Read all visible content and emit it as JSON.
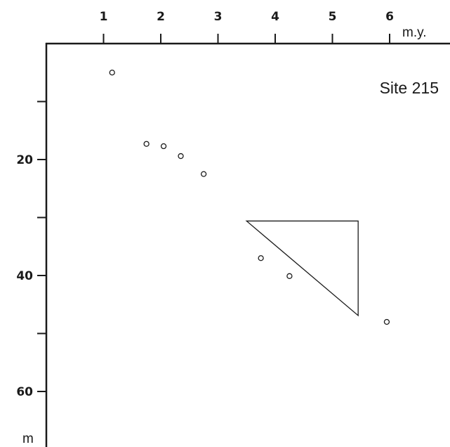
{
  "chart_data": {
    "type": "scatter",
    "title": "",
    "annotation": "Site 215",
    "xlabel": "m.y.",
    "ylabel": "m",
    "x_ticks": [
      1,
      2,
      3,
      4,
      5,
      6
    ],
    "y_ticks": [
      20,
      40,
      60
    ],
    "xlim": [
      0,
      6.7
    ],
    "ylim": [
      0,
      69
    ],
    "y_inverted": true,
    "x_axis_position": "top",
    "grid": false,
    "points": [
      {
        "x": 1.15,
        "y": 5
      },
      {
        "x": 1.75,
        "y": 17.3
      },
      {
        "x": 2.05,
        "y": 17.7
      },
      {
        "x": 2.35,
        "y": 19.4
      },
      {
        "x": 2.75,
        "y": 22.5
      },
      {
        "x": 3.75,
        "y": 37
      },
      {
        "x": 4.25,
        "y": 40.1
      },
      {
        "x": 5.95,
        "y": 48
      }
    ],
    "triangle": [
      {
        "x": 3.5,
        "y": 30.6
      },
      {
        "x": 5.45,
        "y": 30.6
      },
      {
        "x": 5.45,
        "y": 46.9
      }
    ]
  }
}
